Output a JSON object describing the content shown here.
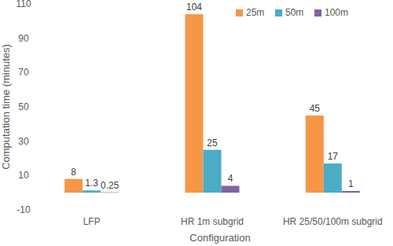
{
  "chart_data": {
    "type": "bar",
    "categories": [
      "LFP",
      "HR 1m subgrid",
      "HR 25/50/100m subgrid"
    ],
    "series": [
      {
        "name": "25m",
        "color": "#f79646",
        "values": [
          8,
          104,
          45
        ]
      },
      {
        "name": "50m",
        "color": "#4bacc6",
        "values": [
          1.3,
          25,
          17
        ]
      },
      {
        "name": "100m",
        "color": "#8064a2",
        "values": [
          0.25,
          4,
          1
        ]
      }
    ],
    "x_label": "Configuration",
    "y_label": "Computation time (minutes)",
    "ylim": [
      -10,
      110
    ],
    "yticks": [
      -10,
      10,
      30,
      50,
      70,
      90,
      110
    ],
    "grid": false,
    "legend": "top-right",
    "data_labels": true
  }
}
